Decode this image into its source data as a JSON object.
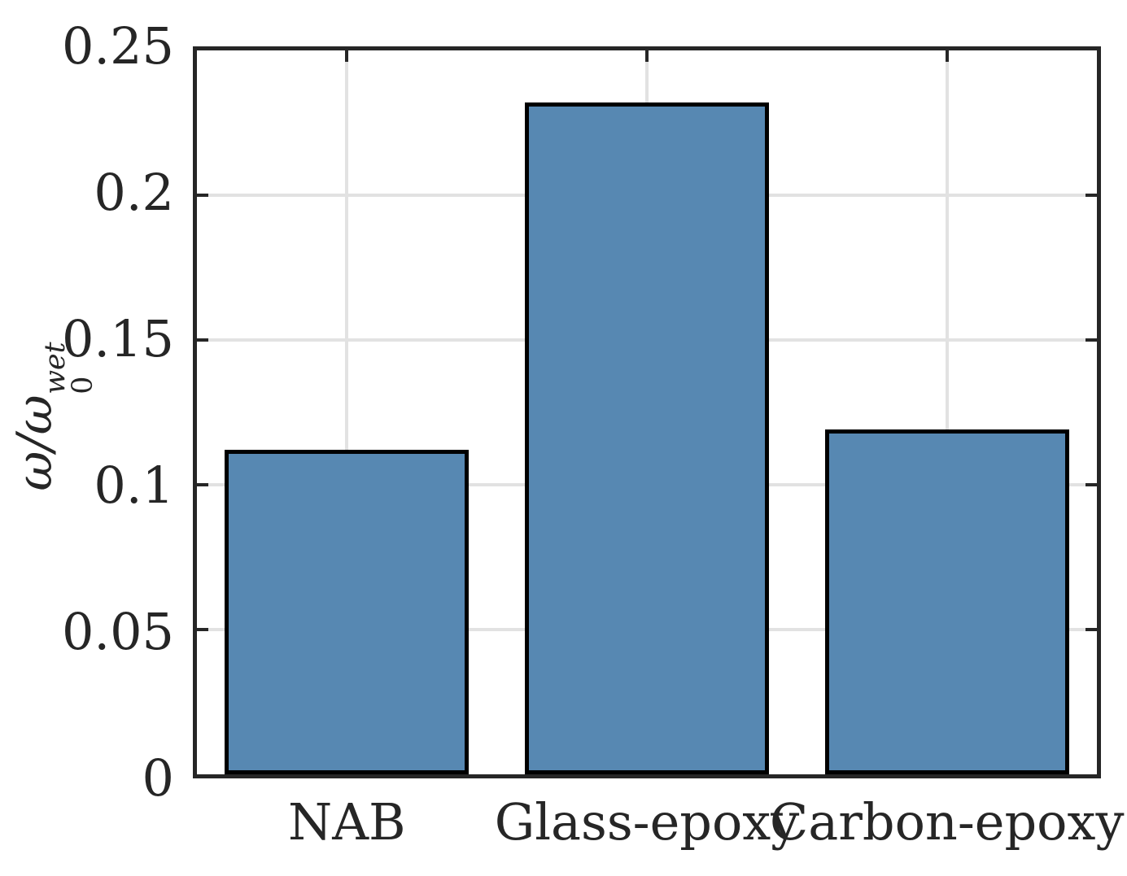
{
  "figure": {
    "background": "#ffffff",
    "text_color": "#262626"
  },
  "y_axis_label": {
    "base": "ω/ω",
    "sub": "0",
    "sup": "wet"
  },
  "chart_data": {
    "type": "bar",
    "title": "",
    "xlabel": "",
    "ylabel": "ω/ω_0^wet",
    "categories": [
      "NAB",
      "Glass-epoxy",
      "Carbon-epoxy"
    ],
    "values": [
      0.112,
      0.232,
      0.119
    ],
    "ylim": [
      0,
      0.25
    ],
    "yticks": [
      0,
      0.05,
      0.1,
      0.15,
      0.2,
      0.25
    ],
    "ytick_labels": [
      "0",
      "0.05",
      "0.1",
      "0.15",
      "0.2",
      "0.25"
    ],
    "grid": true,
    "legend": null,
    "bar_color": "#5788B2",
    "bar_edge_color": "#000000",
    "axis_color": "#262626",
    "grid_color": "#E2E2E2"
  }
}
